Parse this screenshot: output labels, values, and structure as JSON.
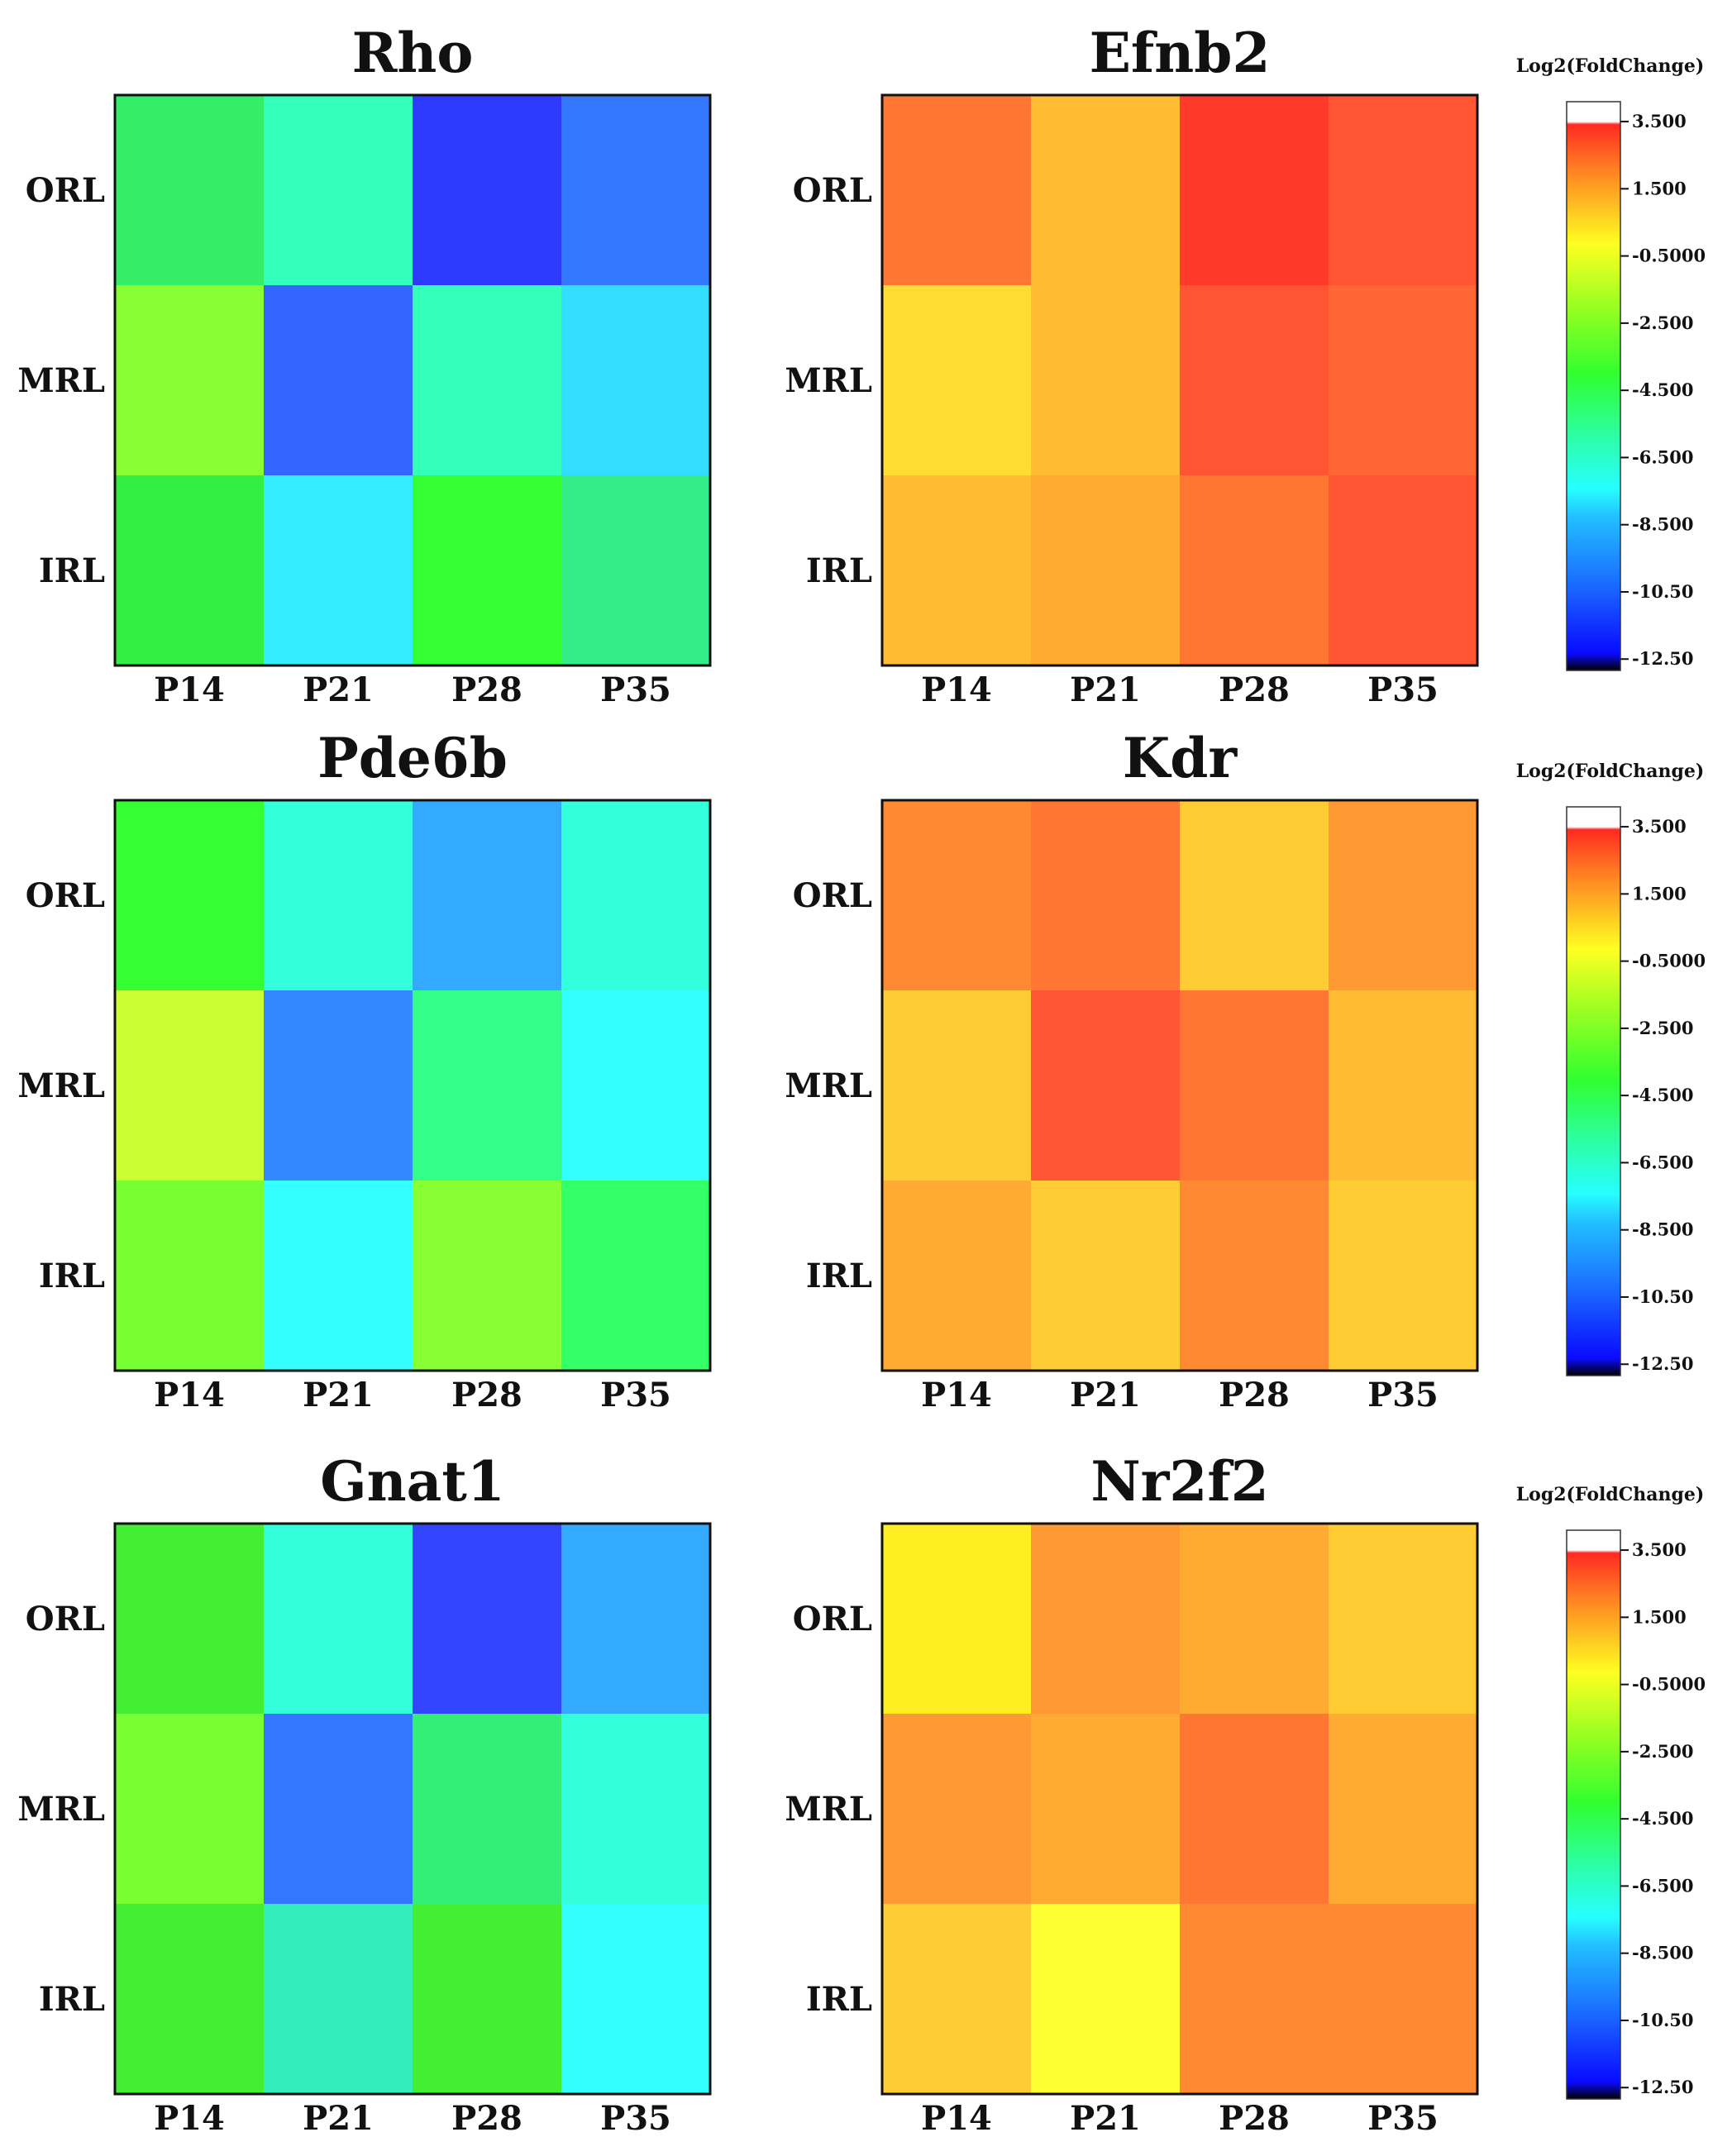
{
  "figure": {
    "colorbar_title": "Log2(FoldChange)",
    "colorbar_ticks": [
      "3.500",
      "1.500",
      "-0.5000",
      "-2.500",
      "-4.500",
      "-6.500",
      "-8.500",
      "-10.50",
      "-12.50"
    ],
    "colorbar_tick_values": [
      3.5,
      1.5,
      -0.5,
      -2.5,
      -4.5,
      -6.5,
      -8.5,
      -10.5,
      -12.5
    ],
    "colorbar_range": [
      -12.5,
      3.5
    ],
    "colorscale": [
      "#000000",
      "#0a0aff",
      "#1a6aff",
      "#22c0ff",
      "#26ffff",
      "#2cffb0",
      "#30ff30",
      "#99ff22",
      "#ffff22",
      "#ffbb22",
      "#ff7722",
      "#ff2a22",
      "#ffffff"
    ]
  },
  "chart_data": [
    {
      "type": "heatmap",
      "title": "Rho",
      "xlabel": "",
      "ylabel": "",
      "x_categories": [
        "P14",
        "P21",
        "P28",
        "P35"
      ],
      "y_categories": [
        "ORL",
        "MRL",
        "IRL"
      ],
      "values": [
        [
          -4.9,
          -7.0,
          -11.6,
          -10.0
        ],
        [
          -3.3,
          -10.1,
          -6.9,
          -8.1
        ],
        [
          -4.3,
          -8.6,
          -4.0,
          -5.9
        ]
      ],
      "cell_colors": [
        [
          "#33ee66",
          "#33ffbb",
          "#2e3bff",
          "#3377ff"
        ],
        [
          "#88ff33",
          "#3366ff",
          "#33ffbb",
          "#33ddff"
        ],
        [
          "#33ee44",
          "#33eeff",
          "#33ff33",
          "#33ee88"
        ]
      ],
      "colorbar_range": [
        -12.5,
        3.5
      ]
    },
    {
      "type": "heatmap",
      "title": "Efnb2",
      "xlabel": "",
      "ylabel": "",
      "x_categories": [
        "P14",
        "P21",
        "P28",
        "P35"
      ],
      "y_categories": [
        "ORL",
        "MRL",
        "IRL"
      ],
      "values": [
        [
          1.6,
          0.5,
          3.0,
          2.5
        ],
        [
          -0.5,
          0.6,
          2.4,
          1.8
        ],
        [
          0.4,
          0.8,
          1.6,
          2.6
        ]
      ],
      "cell_colors": [
        [
          "#ff7733",
          "#ffbb33",
          "#ff3a2a",
          "#ff5533"
        ],
        [
          "#ffdd33",
          "#ffbb33",
          "#ff5533",
          "#ff6633"
        ],
        [
          "#ffbb33",
          "#ffaa33",
          "#ff7733",
          "#ff5533"
        ]
      ],
      "colorbar_range": [
        -12.5,
        3.5
      ]
    },
    {
      "type": "heatmap",
      "title": "Pde6b",
      "xlabel": "",
      "ylabel": "",
      "x_categories": [
        "P14",
        "P21",
        "P28",
        "P35"
      ],
      "y_categories": [
        "ORL",
        "MRL",
        "IRL"
      ],
      "values": [
        [
          -4.3,
          -7.3,
          -9.4,
          -7.2
        ],
        [
          -1.9,
          -9.8,
          -6.4,
          -8.3
        ],
        [
          -3.2,
          -8.5,
          -3.1,
          -5.6
        ]
      ],
      "cell_colors": [
        [
          "#33ff33",
          "#33ffdd",
          "#33aaff",
          "#33ffdd"
        ],
        [
          "#ccff33",
          "#3388ff",
          "#33ff88",
          "#33ffff"
        ],
        [
          "#77ff33",
          "#33ffff",
          "#88ff33",
          "#33ff66"
        ]
      ],
      "colorbar_range": [
        -12.5,
        3.5
      ]
    },
    {
      "type": "heatmap",
      "title": "Kdr",
      "xlabel": "",
      "ylabel": "",
      "x_categories": [
        "P14",
        "P21",
        "P28",
        "P35"
      ],
      "y_categories": [
        "ORL",
        "MRL",
        "IRL"
      ],
      "values": [
        [
          1.4,
          1.6,
          0.2,
          1.2
        ],
        [
          0.2,
          2.6,
          1.7,
          0.4
        ],
        [
          0.6,
          0.0,
          1.3,
          -0.1
        ]
      ],
      "cell_colors": [
        [
          "#ff8833",
          "#ff7733",
          "#ffcc33",
          "#ff9933"
        ],
        [
          "#ffcc33",
          "#ff5533",
          "#ff7733",
          "#ffbb33"
        ],
        [
          "#ffaa33",
          "#ffcc33",
          "#ff8833",
          "#ffcc33"
        ]
      ],
      "colorbar_range": [
        -12.5,
        3.5
      ]
    },
    {
      "type": "heatmap",
      "title": "Gnat1",
      "xlabel": "",
      "ylabel": "",
      "x_categories": [
        "P14",
        "P21",
        "P28",
        "P35"
      ],
      "y_categories": [
        "ORL",
        "MRL",
        "IRL"
      ],
      "values": [
        [
          -4.2,
          -7.5,
          -11.3,
          -9.4
        ],
        [
          -3.4,
          -10.2,
          -5.9,
          -7.4
        ],
        [
          -4.0,
          -6.8,
          -4.1,
          -8.4
        ]
      ],
      "cell_colors": [
        [
          "#44ee33",
          "#33ffdd",
          "#3344ff",
          "#33aaff"
        ],
        [
          "#77ff33",
          "#3377ff",
          "#33ee77",
          "#33ffdd"
        ],
        [
          "#44ee33",
          "#33eebb",
          "#44ee33",
          "#33ffff"
        ]
      ],
      "colorbar_range": [
        -12.5,
        3.5
      ]
    },
    {
      "type": "heatmap",
      "title": "Nr2f2",
      "xlabel": "",
      "ylabel": "",
      "x_categories": [
        "P14",
        "P21",
        "P28",
        "P35"
      ],
      "y_categories": [
        "ORL",
        "MRL",
        "IRL"
      ],
      "values": [
        [
          -0.8,
          1.1,
          0.9,
          0.3
        ],
        [
          1.0,
          0.7,
          1.6,
          0.9
        ],
        [
          0.2,
          -0.9,
          1.4,
          1.4
        ]
      ],
      "cell_colors": [
        [
          "#ffee22",
          "#ff9933",
          "#ffaa33",
          "#ffcc33"
        ],
        [
          "#ff9933",
          "#ffaa33",
          "#ff7733",
          "#ffaa33"
        ],
        [
          "#ffcc33",
          "#ffff33",
          "#ff8833",
          "#ff8833"
        ]
      ],
      "colorbar_range": [
        -12.5,
        3.5
      ]
    }
  ]
}
